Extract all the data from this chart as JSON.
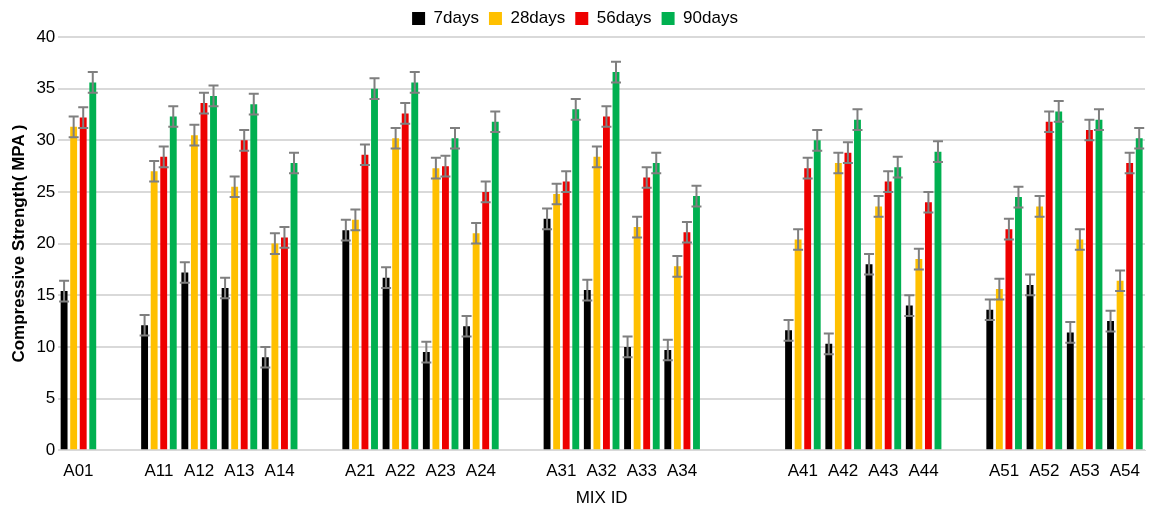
{
  "chart_data": {
    "type": "bar",
    "xlabel": "MIX ID",
    "ylabel": "Compressive Strength( MPA )",
    "categories": [
      "A01",
      null,
      "A11",
      "A12",
      "A13",
      "A14",
      null,
      "A21",
      "A22",
      "A23",
      "A24",
      null,
      "A31",
      "A32",
      "A33",
      "A34",
      null,
      null,
      "A41",
      "A42",
      "A43",
      "A44",
      null,
      "A51",
      "A52",
      "A53",
      "A54"
    ],
    "series": [
      {
        "name": "7days",
        "color": "#000000",
        "values": [
          15.4,
          null,
          12.1,
          17.2,
          15.7,
          9.0,
          null,
          21.3,
          16.7,
          9.5,
          12.0,
          null,
          22.4,
          15.5,
          10.0,
          9.7,
          null,
          null,
          11.6,
          10.3,
          18.0,
          14.0,
          null,
          13.6,
          16.0,
          11.4,
          12.5
        ],
        "errors": [
          1,
          null,
          1,
          1,
          1,
          1,
          null,
          1,
          1,
          1,
          1,
          null,
          1,
          1,
          1,
          1,
          null,
          null,
          1,
          1,
          1,
          1,
          null,
          1,
          1,
          1,
          1
        ]
      },
      {
        "name": "28days",
        "color": "#ffc000",
        "values": [
          31.3,
          null,
          27.0,
          30.5,
          25.5,
          20.0,
          null,
          22.3,
          30.2,
          27.3,
          21.0,
          null,
          24.8,
          28.4,
          21.6,
          17.8,
          null,
          null,
          20.4,
          27.8,
          23.6,
          18.5,
          null,
          15.6,
          23.6,
          20.4,
          16.4
        ],
        "errors": [
          1,
          null,
          1,
          1,
          1,
          1,
          null,
          1,
          1,
          1,
          1,
          null,
          1,
          1,
          1,
          1,
          null,
          null,
          1,
          1,
          1,
          1,
          null,
          1,
          1,
          1,
          1
        ]
      },
      {
        "name": "56days",
        "color": "#ee0000",
        "values": [
          32.2,
          null,
          28.4,
          33.6,
          30.0,
          20.6,
          null,
          28.6,
          32.6,
          27.5,
          25.0,
          null,
          26.0,
          32.3,
          26.4,
          21.1,
          null,
          null,
          27.3,
          28.8,
          26.0,
          24.0,
          null,
          21.4,
          31.8,
          31.0,
          27.8
        ],
        "errors": [
          1,
          null,
          1,
          1,
          1,
          1,
          null,
          1,
          1,
          1,
          1,
          null,
          1,
          1,
          1,
          1,
          null,
          null,
          1,
          1,
          1,
          1,
          null,
          1,
          1,
          1,
          1
        ]
      },
      {
        "name": "90days",
        "color": "#00b050",
        "values": [
          35.6,
          null,
          32.3,
          34.3,
          33.5,
          27.8,
          null,
          35.0,
          35.6,
          30.2,
          31.8,
          null,
          33.0,
          36.6,
          27.8,
          24.6,
          null,
          null,
          30.0,
          32.0,
          27.4,
          28.9,
          null,
          24.5,
          32.8,
          32.0,
          30.2
        ],
        "errors": [
          1,
          null,
          1,
          1,
          1,
          1,
          null,
          1,
          1,
          1,
          1,
          null,
          1,
          1,
          1,
          1,
          null,
          null,
          1,
          1,
          1,
          1,
          null,
          1,
          1,
          1,
          1
        ]
      }
    ],
    "ylim": [
      0,
      40
    ],
    "yticks": [
      0,
      5,
      10,
      15,
      20,
      25,
      30,
      35,
      40
    ],
    "grid": "y",
    "legend": "top"
  }
}
